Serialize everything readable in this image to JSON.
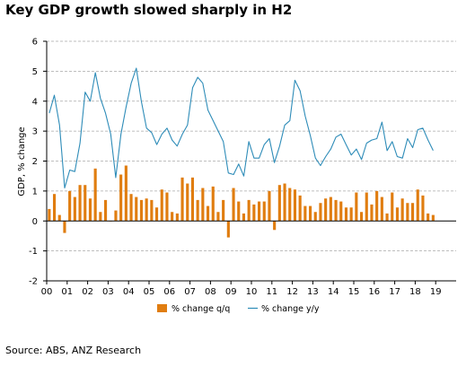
{
  "title": "Key GDP growth slowed sharply in H2",
  "source": "Source: ABS, ANZ Research",
  "colors": {
    "bar": "#E07D10",
    "line": "#2E8CB8",
    "grid": "#A9A9A9",
    "axis": "#000000"
  },
  "chart_data": {
    "type": "bar+line",
    "title": "Key GDP growth slowed sharply in H2",
    "ylabel": "GDP, % change",
    "xlabel": "",
    "ylim": [
      -2,
      6
    ],
    "yticks": [
      "-2",
      "-1",
      "0",
      "1",
      "2",
      "3",
      "4",
      "5",
      "6"
    ],
    "xticks": [
      "00",
      "01",
      "02",
      "03",
      "04",
      "05",
      "06",
      "07",
      "08",
      "09",
      "10",
      "11",
      "12",
      "13",
      "14",
      "15",
      "16",
      "17",
      "18",
      "19"
    ],
    "grid": "horizontal-dashed",
    "legend_position": "bottom",
    "series": [
      {
        "name": "% change q/q",
        "kind": "bar",
        "values": [
          0.4,
          0.9,
          0.2,
          -0.4,
          1.0,
          0.8,
          1.2,
          1.2,
          0.75,
          1.75,
          0.3,
          0.7,
          0.0,
          0.35,
          1.55,
          1.85,
          0.9,
          0.8,
          0.7,
          0.75,
          0.7,
          0.45,
          1.05,
          0.95,
          0.3,
          0.25,
          1.45,
          1.25,
          1.45,
          0.7,
          1.1,
          0.5,
          1.15,
          0.3,
          0.7,
          -0.55,
          1.1,
          0.65,
          0.25,
          0.7,
          0.55,
          0.65,
          0.65,
          1.0,
          -0.3,
          1.2,
          1.25,
          1.1,
          1.05,
          0.85,
          0.5,
          0.5,
          0.3,
          0.6,
          0.75,
          0.8,
          0.7,
          0.65,
          0.45,
          0.45,
          0.95,
          0.3,
          0.95,
          0.55,
          1.0,
          0.8,
          0.25,
          0.95,
          0.45,
          0.75,
          0.6,
          0.6,
          1.05,
          0.85,
          0.25,
          0.2
        ]
      },
      {
        "name": "% change y/y",
        "kind": "line",
        "values": [
          3.6,
          4.2,
          3.2,
          1.1,
          1.7,
          1.65,
          2.6,
          4.3,
          4.0,
          4.95,
          4.1,
          3.6,
          2.9,
          1.45,
          2.9,
          3.8,
          4.6,
          5.1,
          4.0,
          3.1,
          2.95,
          2.55,
          2.9,
          3.1,
          2.7,
          2.5,
          2.9,
          3.2,
          4.45,
          4.8,
          4.6,
          3.7,
          3.35,
          3.0,
          2.65,
          1.6,
          1.55,
          1.9,
          1.5,
          2.65,
          2.1,
          2.1,
          2.55,
          2.75,
          1.95,
          2.5,
          3.2,
          3.35,
          4.7,
          4.35,
          3.5,
          2.85,
          2.1,
          1.85,
          2.15,
          2.4,
          2.8,
          2.9,
          2.55,
          2.2,
          2.4,
          2.05,
          2.6,
          2.7,
          2.75,
          3.3,
          2.35,
          2.65,
          2.15,
          2.1,
          2.75,
          2.45,
          3.05,
          3.1,
          2.7,
          2.35
        ]
      }
    ]
  }
}
